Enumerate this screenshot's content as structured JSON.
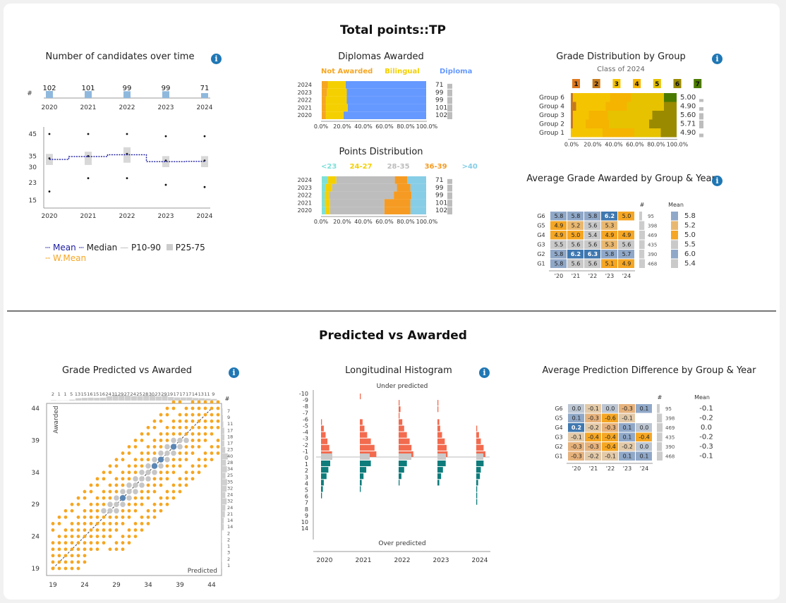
{
  "section1": {
    "title": "Total points::TP"
  },
  "section2": {
    "title": "Predicted vs Awarded"
  },
  "panels": {
    "candidates": "Number of candidates over time",
    "diplomas": "Diplomas Awarded",
    "points_dist": "Points Distribution",
    "grade_dist": "Grade Distribution by Group",
    "grade_dist_sub": "Class of 2024",
    "avg_grade": "Average Grade Awarded by Group & Year",
    "pred_vs_awarded": "Grade Predicted vs Awarded",
    "long_hist": "Longitudinal Histogram",
    "avg_pred_diff": "Average Prediction Difference by Group & Year"
  },
  "info_glyph": "i",
  "legend": {
    "mean": "Mean",
    "median": "Median",
    "p1090": "P10-90",
    "p2575": "P25-75",
    "wmean": "W.Mean"
  },
  "colors": {
    "orange": "#f5a623",
    "yellow": "#f5d000",
    "blue": "#6699ff",
    "grey": "#bdbdbd",
    "navy": "#1a1aa0",
    "teal": "#0e7c7b",
    "red": "#f26b4f"
  },
  "chart_data": [
    {
      "id": "candidates",
      "type": "bar",
      "years": [
        "2020",
        "2021",
        "2022",
        "2023",
        "2024"
      ],
      "counts": [
        102,
        101,
        99,
        99,
        71
      ],
      "count_label": "#"
    },
    {
      "id": "tp_box",
      "type": "box",
      "years": [
        "2020",
        "2021",
        "2022",
        "2023",
        "2024"
      ],
      "yticks": [
        45,
        35,
        30,
        23,
        15
      ],
      "ylim": [
        15,
        45
      ],
      "p10": [
        19,
        25,
        25,
        22,
        21
      ],
      "p25": [
        31,
        31,
        32,
        30,
        30
      ],
      "median": [
        34,
        35,
        36,
        33,
        33
      ],
      "p75": [
        36,
        37,
        39,
        35,
        35
      ],
      "p90": [
        45,
        45,
        45,
        44,
        44
      ],
      "mean": [
        33.5,
        34.8,
        35.6,
        32.5,
        32.6
      ]
    },
    {
      "id": "diplomas",
      "type": "stacked_bar_h",
      "years": [
        "2024",
        "2023",
        "2022",
        "2021",
        "2020"
      ],
      "counts": [
        71,
        99,
        99,
        101,
        102
      ],
      "series": [
        {
          "name": "Not Awarded",
          "color": "#f5a623",
          "values": [
            6,
            5,
            4,
            4,
            4
          ]
        },
        {
          "name": "Bilingual",
          "color": "#f5d000",
          "values": [
            17,
            19,
            20,
            21,
            17
          ]
        },
        {
          "name": "Diploma",
          "color": "#6699ff",
          "values": [
            77,
            76,
            76,
            75,
            79
          ]
        }
      ],
      "xticks": [
        "0.0%",
        "20.0%",
        "40.0%",
        "60.0%",
        "80.0%",
        "100.0%"
      ]
    },
    {
      "id": "points_dist",
      "type": "stacked_bar_h",
      "years": [
        "2024",
        "2023",
        "2022",
        "2021",
        "2020"
      ],
      "counts": [
        71,
        99,
        99,
        101,
        102
      ],
      "series": [
        {
          "name": "<23",
          "color": "#7fe0d8",
          "values": [
            6,
            4,
            3,
            3,
            4
          ]
        },
        {
          "name": "24-27",
          "color": "#f5d000",
          "values": [
            8,
            6,
            4,
            5,
            4
          ]
        },
        {
          "name": "28-35",
          "color": "#bdbdbd",
          "values": [
            56,
            62,
            62,
            52,
            52
          ]
        },
        {
          "name": "36-39",
          "color": "#f59b23",
          "values": [
            12,
            13,
            17,
            25,
            25
          ]
        },
        {
          "name": ">40",
          "color": "#87cde6",
          "values": [
            18,
            15,
            14,
            15,
            15
          ]
        }
      ],
      "xticks": [
        "0.0%",
        "20.0%",
        "40.0%",
        "60.0%",
        "80.0%",
        "100.0%"
      ]
    },
    {
      "id": "grade_dist",
      "type": "stacked_bar_h",
      "grades": [
        "1",
        "2",
        "3",
        "4",
        "5",
        "6",
        "7"
      ],
      "grade_colors": [
        "#e0781c",
        "#c77a1a",
        "#f5c400",
        "#f5b400",
        "#e6c200",
        "#9a8a00",
        "#4a7a00"
      ],
      "groups": [
        "Group 6",
        "Group 4",
        "Group 3",
        "Group 2",
        "Group 1"
      ],
      "means": [
        "5.00",
        "4.90",
        "5.60",
        "5.71",
        "4.90"
      ],
      "segments": [
        [
          0,
          2,
          35,
          20,
          31,
          0,
          12
        ],
        [
          0,
          5,
          28,
          20,
          35,
          12,
          0
        ],
        [
          0,
          2,
          15,
          18,
          42,
          23,
          0
        ],
        [
          0,
          2,
          12,
          22,
          38,
          26,
          0
        ],
        [
          0,
          0,
          30,
          30,
          25,
          15,
          0
        ]
      ],
      "xticks": [
        "0.0%",
        "20.0%",
        "40.0%",
        "60.0%",
        "80.0%",
        "100.0%"
      ]
    },
    {
      "id": "avg_grade",
      "type": "heatmap",
      "rows": [
        "G6",
        "G5",
        "G4",
        "G3",
        "G2",
        "G1"
      ],
      "cols": [
        "'20",
        "'21",
        "'22",
        "'23",
        "'24"
      ],
      "values": [
        [
          "5.8",
          "5.8",
          "5.8",
          "6.2",
          "5.0"
        ],
        [
          "4.9",
          "5.2",
          "5.6",
          "5.3",
          ""
        ],
        [
          "4.9",
          "5.0",
          "5.4",
          "4.9",
          "4.9"
        ],
        [
          "5.5",
          "5.6",
          "5.6",
          "5.3",
          "5.6"
        ],
        [
          "5.8",
          "6.2",
          "6.3",
          "5.8",
          "5.7"
        ],
        [
          "5.8",
          "5.6",
          "5.6",
          "5.1",
          "4.9"
        ]
      ],
      "counts_label": "#",
      "counts": [
        "95",
        "398",
        "469",
        "435",
        "390",
        "468"
      ],
      "mean_label": "Mean",
      "means": [
        "5.8",
        "5.2",
        "5.0",
        "5.5",
        "6.0",
        "5.4"
      ]
    },
    {
      "id": "pred_vs_awarded",
      "type": "scatter",
      "xlabel": "Predicted",
      "ylabel": "Awarded",
      "ticks": [
        19,
        24,
        29,
        34,
        39,
        44
      ],
      "top_counts": [
        "2",
        "1",
        "1",
        "5",
        "13",
        "15",
        "16",
        "15",
        "16",
        "24",
        "31",
        "29",
        "27",
        "24",
        "25",
        "28",
        "30",
        "23",
        "29",
        "19",
        "17",
        "17",
        "17",
        "14",
        "13",
        "11",
        "9"
      ],
      "right_counts_label": "#",
      "right_counts": [
        "7",
        "9",
        "11",
        "17",
        "18",
        "17",
        "23",
        "40",
        "28",
        "34",
        "25",
        "35",
        "32",
        "24",
        "32",
        "24",
        "21",
        "14",
        "14",
        "2",
        "2",
        "1",
        "3",
        "2",
        "1"
      ]
    },
    {
      "id": "long_hist",
      "type": "histogram",
      "top_label": "Under predicted",
      "bottom_label": "Over predicted",
      "yticks": [
        "-10",
        "-9",
        "-8",
        "-7",
        "-6",
        "-5",
        "-4",
        "-3",
        "-2",
        "-1",
        "0",
        "1",
        "2",
        "3",
        "4",
        "5",
        "6",
        "7",
        "8",
        "9",
        "10",
        "14"
      ],
      "years": [
        "2020",
        "2021",
        "2022",
        "2023",
        "2024"
      ]
    },
    {
      "id": "avg_pred_diff",
      "type": "heatmap",
      "rows": [
        "G6",
        "G5",
        "G4",
        "G3",
        "G2",
        "G1"
      ],
      "cols": [
        "'20",
        "'21",
        "'22",
        "'23",
        "'24"
      ],
      "values": [
        [
          "0.0",
          "-0.1",
          "0.0",
          "-0.3",
          "0.1"
        ],
        [
          "0.1",
          "-0.3",
          "-0.6",
          "-0.1",
          ""
        ],
        [
          "0.2",
          "-0.2",
          "-0.3",
          "0.1",
          "0.0"
        ],
        [
          "-0.1",
          "-0.4",
          "-0.4",
          "0.1",
          "-0.4"
        ],
        [
          "-0.3",
          "-0.3",
          "-0.4",
          "-0.2",
          "0.0"
        ],
        [
          "-0.3",
          "-0.2",
          "-0.1",
          "0.1",
          "0.1"
        ]
      ],
      "counts_label": "#",
      "counts": [
        "95",
        "398",
        "469",
        "435",
        "390",
        "468"
      ],
      "mean_label": "Mean",
      "means": [
        "-0.1",
        "-0.2",
        "0.0",
        "-0.2",
        "-0.3",
        "-0.1"
      ]
    }
  ]
}
